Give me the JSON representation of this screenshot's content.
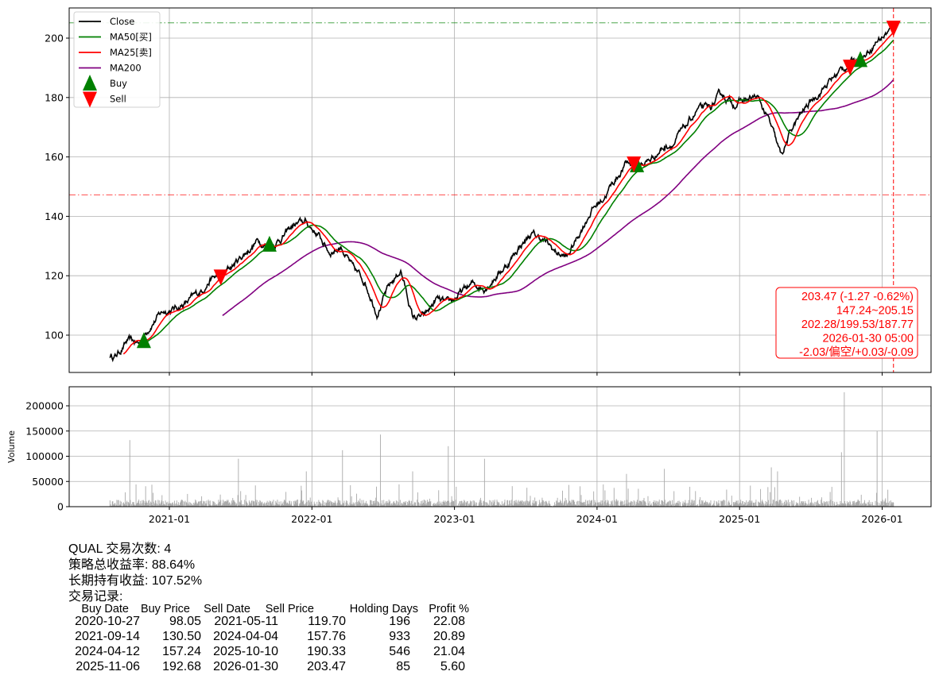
{
  "chart_data": [
    {
      "type": "line",
      "ticker": "QUAL",
      "ylim": [
        87,
        210
      ],
      "yticks": [
        100,
        120,
        140,
        160,
        180,
        200
      ],
      "xticks": [
        "2021-01",
        "2022-01",
        "2023-01",
        "2024-01",
        "2025-01",
        "2026-01"
      ],
      "grid": true,
      "legend_placement": "upper-left",
      "legend": [
        "Close",
        "MA50[买]",
        "MA25[卖]",
        "MA200",
        "Buy",
        "Sell"
      ],
      "colors": {
        "Close": "#000000",
        "MA50[买]": "#008000",
        "MA25[卖]": "#ff0000",
        "MA200": "#800080",
        "Buy": "#008000",
        "Sell": "#ff0000"
      },
      "close_monthly": {
        "dates": [
          "2020-08",
          "2020-09",
          "2020-10",
          "2020-11",
          "2020-12",
          "2021-01",
          "2021-02",
          "2021-03",
          "2021-04",
          "2021-05",
          "2021-06",
          "2021-07",
          "2021-08",
          "2021-09",
          "2021-10",
          "2021-11",
          "2021-12",
          "2022-01",
          "2022-02",
          "2022-03",
          "2022-04",
          "2022-05",
          "2022-06",
          "2022-07",
          "2022-08",
          "2022-09",
          "2022-10",
          "2022-11",
          "2022-12",
          "2023-01",
          "2023-02",
          "2023-03",
          "2023-04",
          "2023-05",
          "2023-06",
          "2023-07",
          "2023-08",
          "2023-09",
          "2023-10",
          "2023-11",
          "2023-12",
          "2024-01",
          "2024-02",
          "2024-03",
          "2024-04",
          "2024-05",
          "2024-06",
          "2024-07",
          "2024-08",
          "2024-09",
          "2024-10",
          "2024-11",
          "2024-12",
          "2025-01",
          "2025-02",
          "2025-03",
          "2025-04",
          "2025-05",
          "2025-06",
          "2025-07",
          "2025-08",
          "2025-09",
          "2025-10",
          "2025-11",
          "2025-12",
          "2026-01"
        ],
        "values": [
          93,
          98,
          97,
          104,
          108,
          109,
          111,
          114,
          119,
          120,
          124,
          128,
          132,
          130,
          133,
          137,
          138,
          134,
          128,
          130,
          122,
          118,
          108,
          116,
          122,
          106,
          106,
          112,
          110,
          114,
          117,
          116,
          120,
          124,
          130,
          134,
          132,
          128,
          126,
          134,
          142,
          146,
          152,
          158,
          157,
          159,
          163,
          165,
          170,
          176,
          176,
          181,
          178,
          179,
          180,
          172,
          160,
          170,
          176,
          181,
          185,
          189,
          192,
          194,
          199,
          203.47
        ]
      },
      "hlines": [
        {
          "value": 205.15,
          "color": "#008000",
          "style": "dash-dot"
        },
        {
          "value": 147.24,
          "color": "#ff0000",
          "style": "dash-dot"
        }
      ],
      "vline": {
        "date": "2026-01-30",
        "color": "#ff0000",
        "style": "dashed"
      },
      "buy_points": [
        {
          "date": "2020-10-27",
          "price": 98.05
        },
        {
          "date": "2021-09-14",
          "price": 130.5
        },
        {
          "date": "2024-04-12",
          "price": 157.24
        },
        {
          "date": "2025-11-06",
          "price": 192.68
        }
      ],
      "sell_points": [
        {
          "date": "2021-05-11",
          "price": 119.7
        },
        {
          "date": "2024-04-04",
          "price": 157.76
        },
        {
          "date": "2025-10-10",
          "price": 190.33
        },
        {
          "date": "2026-01-30",
          "price": 203.47
        }
      ],
      "info_box": [
        "203.47 (-1.27 -0.62%)",
        "147.24~205.15",
        "202.28/199.53/187.77",
        "2026-01-30 05:00",
        "-2.03/偏空/+0.03/-0.09"
      ]
    },
    {
      "type": "bar",
      "ylabel": "Volume",
      "ylim": [
        0,
        240000
      ],
      "yticks": [
        "0",
        "50000",
        "100000",
        "150000",
        "200000"
      ],
      "bar_color": "#a9a9a9",
      "notable_spikes": [
        {
          "date": "2020-09-21",
          "value": 132000
        },
        {
          "date": "2021-06-25",
          "value": 95000
        },
        {
          "date": "2021-12-17",
          "value": 70000
        },
        {
          "date": "2022-03-18",
          "value": 112000
        },
        {
          "date": "2022-06-24",
          "value": 143000
        },
        {
          "date": "2022-09-16",
          "value": 70000
        },
        {
          "date": "2022-12-16",
          "value": 120000
        },
        {
          "date": "2023-03-17",
          "value": 95000
        },
        {
          "date": "2024-03-15",
          "value": 65000
        },
        {
          "date": "2024-06-21",
          "value": 75000
        },
        {
          "date": "2025-03-21",
          "value": 78000
        },
        {
          "date": "2025-04-07",
          "value": 70000
        },
        {
          "date": "2025-09-19",
          "value": 108000
        },
        {
          "date": "2025-09-26",
          "value": 227000
        },
        {
          "date": "2025-12-19",
          "value": 150000
        }
      ]
    }
  ],
  "summary": {
    "line1": "QUAL 交易次数: 4",
    "line2": "策略总收益率: 88.64%",
    "line3": "长期持有收益: 107.52%",
    "line4": "交易记录:"
  },
  "trades": {
    "headers": [
      "Buy Date",
      "Buy Price",
      "Sell Date",
      "Sell Price",
      "Holding Days",
      "Profit %"
    ],
    "rows": [
      [
        "2020-10-27",
        "98.05",
        "2021-05-11",
        "119.70",
        "196",
        "22.08"
      ],
      [
        "2021-09-14",
        "130.50",
        "2024-04-04",
        "157.76",
        "933",
        "20.89"
      ],
      [
        "2024-04-12",
        "157.24",
        "2025-10-10",
        "190.33",
        "546",
        "21.04"
      ],
      [
        "2025-11-06",
        "192.68",
        "2026-01-30",
        "203.47",
        "85",
        "5.60"
      ]
    ]
  }
}
